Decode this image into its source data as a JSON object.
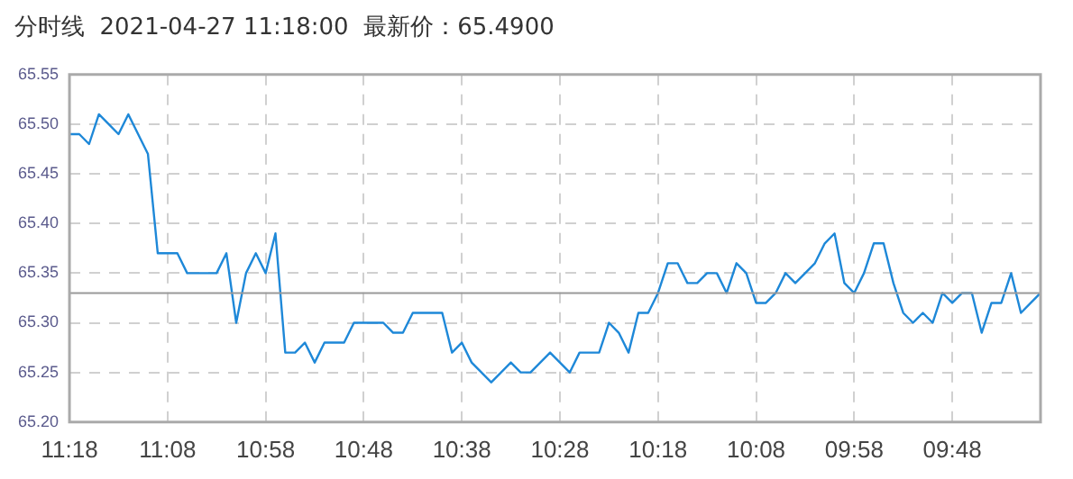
{
  "chart_data": {
    "type": "line",
    "title": "分时线  2021-04-27 11:18:00  最新价：65.4900",
    "categories": [
      "11:18",
      null,
      null,
      null,
      null,
      null,
      null,
      null,
      null,
      null,
      "11:08",
      null,
      null,
      null,
      null,
      null,
      null,
      null,
      null,
      null,
      "10:58",
      null,
      null,
      null,
      null,
      null,
      null,
      null,
      null,
      null,
      "10:48",
      null,
      null,
      null,
      null,
      null,
      null,
      null,
      null,
      null,
      "10:38",
      null,
      null,
      null,
      null,
      null,
      null,
      null,
      null,
      null,
      "10:28",
      null,
      null,
      null,
      null,
      null,
      null,
      null,
      null,
      null,
      "10:18",
      null,
      null,
      null,
      null,
      null,
      null,
      null,
      null,
      null,
      "10:08",
      null,
      null,
      null,
      null,
      null,
      null,
      null,
      null,
      null,
      "09:58",
      null,
      null,
      null,
      null,
      null,
      null,
      null,
      null,
      null,
      "09:48",
      null,
      null,
      null,
      null,
      null,
      null,
      null,
      null,
      null
    ],
    "series": [
      {
        "color": "#1e88d8",
        "values": [
          65.49,
          65.49,
          65.48,
          65.51,
          65.5,
          65.49,
          65.51,
          65.49,
          65.47,
          65.37,
          65.37,
          65.37,
          65.35,
          65.35,
          65.35,
          65.35,
          65.37,
          65.3,
          65.35,
          65.37,
          65.35,
          65.39,
          65.27,
          65.27,
          65.28,
          65.26,
          65.28,
          65.28,
          65.28,
          65.3,
          65.3,
          65.3,
          65.3,
          65.29,
          65.29,
          65.31,
          65.31,
          65.31,
          65.31,
          65.27,
          65.28,
          65.26,
          65.25,
          65.24,
          65.25,
          65.26,
          65.25,
          65.25,
          65.26,
          65.27,
          65.26,
          65.25,
          65.27,
          65.27,
          65.27,
          65.3,
          65.29,
          65.27,
          65.31,
          65.31,
          65.33,
          65.36,
          65.36,
          65.34,
          65.34,
          65.35,
          65.35,
          65.33,
          65.36,
          65.35,
          65.32,
          65.32,
          65.33,
          65.35,
          65.34,
          65.35,
          65.36,
          65.38,
          65.39,
          65.34,
          65.33,
          65.35,
          65.38,
          65.38,
          65.34,
          65.31,
          65.3,
          65.31,
          65.3,
          65.33,
          65.32,
          65.33,
          65.33,
          65.29,
          65.32,
          65.32,
          65.35,
          65.31,
          65.32,
          65.33
        ]
      }
    ],
    "ylim": [
      65.2,
      65.55
    ],
    "yticks": [
      {
        "value": 65.2,
        "label": "65.20"
      },
      {
        "value": 65.25,
        "label": "65.25"
      },
      {
        "value": 65.3,
        "label": "65.30"
      },
      {
        "value": 65.35,
        "label": "65.35"
      },
      {
        "value": 65.4,
        "label": "65.40"
      },
      {
        "value": 65.45,
        "label": "65.45"
      },
      {
        "value": 65.5,
        "label": "65.50"
      },
      {
        "value": 65.55,
        "label": "65.55"
      }
    ],
    "ref_lines": [
      {
        "axis": "y",
        "value": 65.33,
        "color": "#999999"
      }
    ],
    "grid": true,
    "legend": false,
    "marker": "none",
    "line_style": "solid"
  }
}
